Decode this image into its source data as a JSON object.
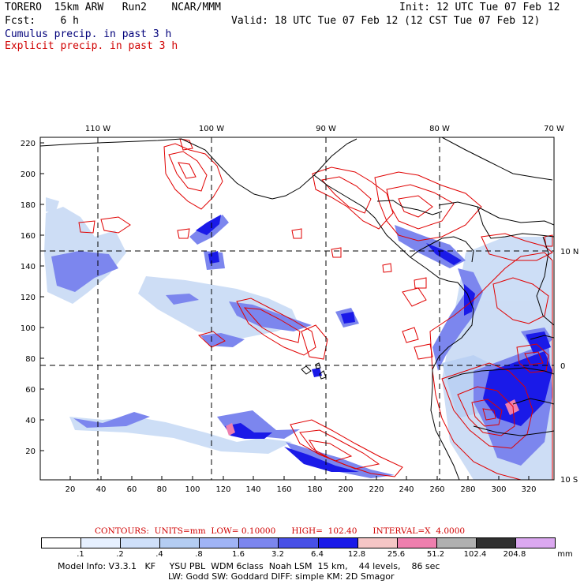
{
  "header": {
    "model": "TORERO  15km ARW   Run2    NCAR/MMM",
    "init": "Init: 12 UTC Tue 07 Feb 12",
    "fcst": "Fcst:    6 h",
    "valid": "Valid: 18 UTC Tue 07 Feb 12 (12 CST Tue 07 Feb 12)",
    "legend_cumulus": "Cumulus precip. in past 3 h",
    "legend_explicit": "Explicit precip. in past 3 h"
  },
  "map": {
    "lon_labels": [
      "110 W",
      "100 W",
      "90 W",
      "80 W",
      "70 W"
    ],
    "lat_labels": [
      "10 N",
      "0",
      "10 S"
    ],
    "x_ticks": [
      "20",
      "40",
      "60",
      "80",
      "100",
      "120",
      "140",
      "160",
      "180",
      "200",
      "220",
      "240",
      "260",
      "280",
      "300",
      "320"
    ],
    "y_ticks": [
      "220",
      "200",
      "180",
      "160",
      "140",
      "120",
      "100",
      "80",
      "60",
      "40",
      "20"
    ]
  },
  "contours": {
    "text": "CONTOURS:  UNITS=mm  LOW= 0.10000      HIGH=  102.40      INTERVAL=X  4.0000"
  },
  "colorbar": {
    "labels": [
      ".1",
      ".2",
      ".4",
      ".8",
      "1.6",
      "3.2",
      "6.4",
      "12.8",
      "25.6",
      "51.2",
      "102.4",
      "204.8"
    ],
    "unit": "mm",
    "colors": [
      "#ffffff",
      "#e6f0ff",
      "#cfe0fa",
      "#b4cdf2",
      "#a0b4f5",
      "#7c86ee",
      "#4850e6",
      "#1a1ae8",
      "#f5c6c6",
      "#ee7fae",
      "#b0b0b0",
      "#303030",
      "#dba8f0"
    ]
  },
  "model_info": {
    "line1": "Model Info: V3.3.1   KF     YSU PBL  WDM 6class  Noah LSM  15 km,    44 levels,    86 sec",
    "line2": "LW: Godd SW: Goddard DIFF: simple KM: 2D Smagor"
  },
  "colors": {
    "cumulus": "#00007a",
    "explicit": "#d00000"
  }
}
